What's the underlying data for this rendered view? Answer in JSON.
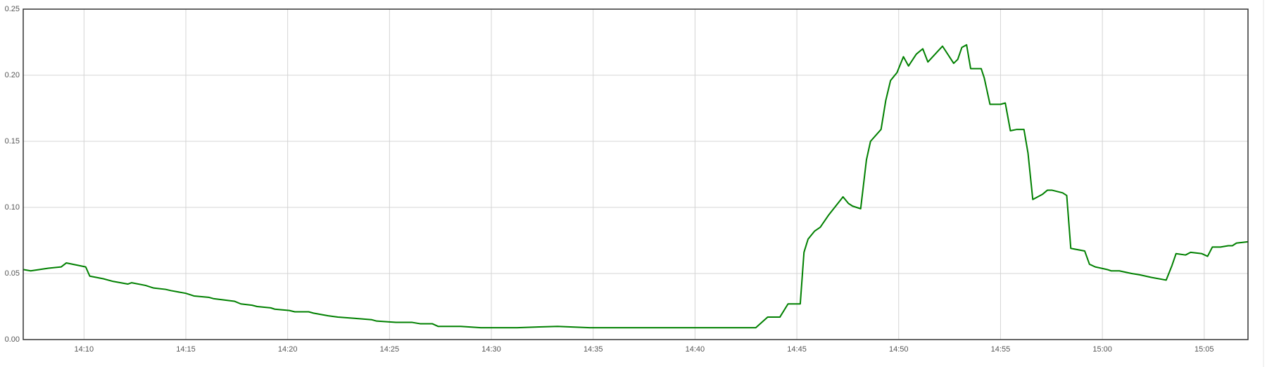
{
  "chart_data": {
    "type": "line",
    "x": [
      "14:07:01",
      "14:07:23",
      "14:08:15",
      "14:08:53",
      "14:09:08",
      "14:10:05",
      "14:10:17",
      "14:10:57",
      "14:11:26",
      "14:12:09",
      "14:12:20",
      "14:13:01",
      "14:13:25",
      "14:14:00",
      "14:14:17",
      "14:15:00",
      "14:15:24",
      "14:16:07",
      "14:16:21",
      "14:17:23",
      "14:17:42",
      "14:18:15",
      "14:18:30",
      "14:19:10",
      "14:19:22",
      "14:20:05",
      "14:20:21",
      "14:21:02",
      "14:21:16",
      "14:21:59",
      "14:22:28",
      "14:23:20",
      "14:24:08",
      "14:24:22",
      "14:25:19",
      "14:26:07",
      "14:26:30",
      "14:27:06",
      "14:27:23",
      "14:28:06",
      "14:28:30",
      "14:29:29",
      "14:31:16",
      "14:33:15",
      "14:34:50",
      "14:35:26",
      "14:37:13",
      "14:38:25",
      "14:39:36",
      "14:41:23",
      "14:41:35",
      "14:42:59",
      "14:43:34",
      "14:44:10",
      "14:44:34",
      "14:45:10",
      "14:45:21",
      "14:45:33",
      "14:45:52",
      "14:46:09",
      "14:46:33",
      "14:47:16",
      "14:47:32",
      "14:47:44",
      "14:48:08",
      "14:48:25",
      "14:48:37",
      "14:49:08",
      "14:49:22",
      "14:49:36",
      "14:49:55",
      "14:50:14",
      "14:50:29",
      "14:50:52",
      "14:51:11",
      "14:51:26",
      "14:52:09",
      "14:52:42",
      "14:52:54",
      "14:53:06",
      "14:53:20",
      "14:53:32",
      "14:54:03",
      "14:54:12",
      "14:54:29",
      "14:55:00",
      "14:55:14",
      "14:55:29",
      "14:55:48",
      "14:56:09",
      "14:56:21",
      "14:56:35",
      "14:57:04",
      "14:57:18",
      "14:57:32",
      "14:58:03",
      "14:58:15",
      "14:58:27",
      "14:59:08",
      "14:59:22",
      "14:59:39",
      "15:00:14",
      "15:00:26",
      "15:00:50",
      "15:01:26",
      "15:01:50",
      "15:02:25",
      "15:03:08",
      "15:03:25",
      "15:03:37",
      "15:04:05",
      "15:04:20",
      "15:04:53",
      "15:05:10",
      "15:05:24",
      "15:05:48",
      "15:06:11",
      "15:06:23",
      "15:06:35",
      "15:07:09"
    ],
    "series": [
      {
        "color": "#008000",
        "values": [
          0.053,
          0.052,
          0.054,
          0.055,
          0.058,
          0.055,
          0.048,
          0.046,
          0.044,
          0.042,
          0.043,
          0.041,
          0.039,
          0.038,
          0.037,
          0.035,
          0.033,
          0.032,
          0.031,
          0.029,
          0.027,
          0.026,
          0.025,
          0.024,
          0.023,
          0.022,
          0.021,
          0.021,
          0.02,
          0.018,
          0.017,
          0.016,
          0.015,
          0.014,
          0.013,
          0.013,
          0.012,
          0.012,
          0.01,
          0.01,
          0.01,
          0.009,
          0.009,
          0.01,
          0.009,
          0.009,
          0.009,
          0.009,
          0.009,
          0.009,
          0.009,
          0.009,
          0.017,
          0.017,
          0.027,
          0.027,
          0.066,
          0.076,
          0.082,
          0.085,
          0.094,
          0.108,
          0.103,
          0.101,
          0.099,
          0.136,
          0.15,
          0.159,
          0.181,
          0.196,
          0.202,
          0.214,
          0.207,
          0.216,
          0.22,
          0.21,
          0.222,
          0.209,
          0.212,
          0.221,
          0.223,
          0.205,
          0.205,
          0.198,
          0.178,
          0.178,
          0.179,
          0.158,
          0.159,
          0.159,
          0.141,
          0.106,
          0.11,
          0.113,
          0.113,
          0.111,
          0.109,
          0.069,
          0.067,
          0.057,
          0.055,
          0.053,
          0.052,
          0.052,
          0.05,
          0.049,
          0.047,
          0.045,
          0.056,
          0.065,
          0.064,
          0.066,
          0.065,
          0.063,
          0.07,
          0.07,
          0.071,
          0.071,
          0.073,
          0.074
        ]
      }
    ],
    "xlim": [
      "14:07:01",
      "15:07:09"
    ],
    "xticks": [
      "14:10",
      "14:15",
      "14:20",
      "14:25",
      "14:30",
      "14:35",
      "14:40",
      "14:45",
      "14:50",
      "14:55",
      "15:00",
      "15:05"
    ],
    "ylim": [
      0,
      0.25
    ],
    "yticks": [
      {
        "value": 0,
        "label": "0.00"
      },
      0.05,
      {
        "value": 0.1,
        "label": "0.10"
      },
      0.15,
      {
        "value": 0.2,
        "label": "0.20"
      },
      0.25
    ],
    "grid": true
  }
}
